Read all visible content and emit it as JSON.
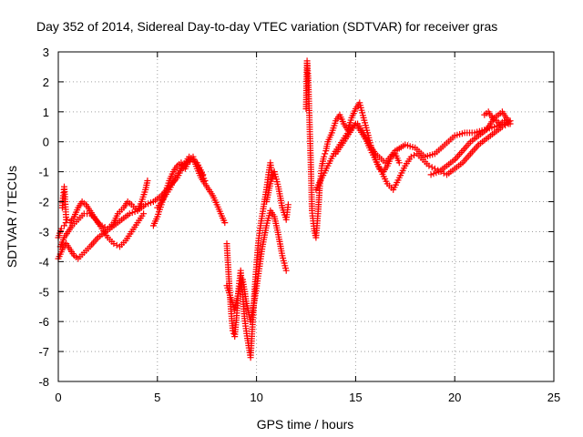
{
  "chart_data": {
    "type": "scatter",
    "title": "Day 352 of 2014, Sidereal Day-to-day VTEC variation (SDTVAR) for receiver gras",
    "xlabel": "GPS time / hours",
    "ylabel": "SDTVAR / TECUs",
    "xlim": [
      0,
      25
    ],
    "ylim": [
      -8,
      3
    ],
    "xticks": [
      0,
      5,
      10,
      15,
      20,
      25
    ],
    "yticks": [
      -8,
      -7,
      -6,
      -5,
      -4,
      -3,
      -2,
      -1,
      0,
      1,
      2,
      3
    ],
    "grid": true,
    "legend": "none",
    "marker": "plus",
    "color": "#ff0000",
    "series": [
      {
        "x": [
          0.0,
          0.15,
          0.3,
          0.45,
          0.6,
          0.8,
          1.0,
          1.2,
          1.4,
          1.6,
          1.8,
          2.0,
          2.2,
          2.5,
          2.8,
          3.0,
          3.3,
          3.5,
          3.7,
          4.0,
          4.2,
          4.4,
          4.5
        ],
        "y": [
          -3.2,
          -2.9,
          -2.8,
          -2.6,
          -2.7,
          -2.5,
          -2.2,
          -2.0,
          -2.1,
          -2.3,
          -2.5,
          -2.7,
          -2.8,
          -2.9,
          -2.7,
          -2.4,
          -2.2,
          -2.0,
          -2.1,
          -2.3,
          -2.0,
          -1.6,
          -1.3
        ]
      },
      {
        "x": [
          0.1,
          0.3,
          0.5,
          0.7,
          1.0,
          1.3,
          1.6,
          1.9,
          2.2,
          2.5,
          2.8,
          3.1,
          3.4,
          3.7,
          4.0,
          4.3
        ],
        "y": [
          -3.5,
          -3.2,
          -3.0,
          -2.8,
          -2.6,
          -2.4,
          -2.4,
          -2.6,
          -2.9,
          -3.2,
          -3.4,
          -3.5,
          -3.3,
          -3.0,
          -2.7,
          -2.4
        ]
      },
      {
        "x": [
          0.0,
          0.2,
          0.4,
          0.6,
          0.8,
          1.0,
          1.3,
          1.6,
          2.0,
          2.4,
          2.8,
          3.2,
          3.6,
          4.0,
          4.4,
          4.8,
          5.2,
          5.6,
          6.0,
          6.3,
          6.6,
          7.0,
          7.3
        ],
        "y": [
          -3.9,
          -3.6,
          -3.4,
          -3.6,
          -3.8,
          -3.9,
          -3.7,
          -3.5,
          -3.2,
          -3.0,
          -2.8,
          -2.6,
          -2.4,
          -2.3,
          -2.1,
          -2.0,
          -1.8,
          -1.5,
          -1.2,
          -0.8,
          -0.5,
          -0.7,
          -1.1
        ]
      },
      {
        "x": [
          0.2,
          0.25,
          0.3,
          0.35,
          0.4
        ],
        "y": [
          -2.2,
          -1.8,
          -1.5,
          -2.0,
          -2.6
        ]
      },
      {
        "x": [
          4.8,
          5.0,
          5.2,
          5.4,
          5.6,
          5.8,
          6.0,
          6.2,
          6.4,
          6.6,
          6.8,
          7.0,
          7.2,
          7.4,
          7.6,
          7.8,
          8.0,
          8.2,
          8.4
        ],
        "y": [
          -2.8,
          -2.5,
          -2.1,
          -1.7,
          -1.3,
          -1.0,
          -0.8,
          -0.7,
          -0.9,
          -0.6,
          -0.5,
          -0.9,
          -1.2,
          -1.4,
          -1.6,
          -1.8,
          -2.1,
          -2.4,
          -2.7
        ]
      },
      {
        "x": [
          5.0,
          5.3,
          5.6,
          5.9,
          6.2,
          6.5,
          6.8,
          7.1,
          7.4
        ],
        "y": [
          -2.2,
          -1.9,
          -1.6,
          -1.2,
          -0.9,
          -0.7,
          -0.6,
          -0.9,
          -1.3
        ]
      },
      {
        "x": [
          8.5,
          8.6,
          8.7,
          8.8,
          8.9,
          9.0,
          9.1,
          9.2,
          9.3,
          9.4,
          9.5,
          9.6,
          9.7,
          9.8,
          9.9,
          10.0,
          10.1,
          10.2,
          10.3,
          10.4,
          10.5,
          10.6,
          10.7,
          10.8
        ],
        "y": [
          -3.4,
          -4.5,
          -5.5,
          -6.3,
          -6.5,
          -5.8,
          -4.9,
          -4.3,
          -5.1,
          -5.9,
          -6.4,
          -6.8,
          -7.2,
          -6.1,
          -5.0,
          -4.1,
          -3.3,
          -2.8,
          -2.4,
          -2.0,
          -1.6,
          -1.1,
          -0.7,
          -1.2
        ]
      },
      {
        "x": [
          8.5,
          8.7,
          8.9,
          9.1,
          9.3,
          9.5,
          9.7,
          9.9,
          10.1,
          10.3,
          10.5,
          10.7,
          10.9,
          11.1,
          11.3,
          11.5
        ],
        "y": [
          -4.8,
          -5.2,
          -5.6,
          -5.0,
          -4.6,
          -5.4,
          -6.0,
          -5.3,
          -4.4,
          -3.5,
          -2.8,
          -2.3,
          -2.5,
          -3.1,
          -3.8,
          -4.3
        ]
      },
      {
        "x": [
          10.5,
          10.7,
          10.9,
          11.1,
          11.3,
          11.5,
          11.6
        ],
        "y": [
          -2.0,
          -1.4,
          -1.0,
          -1.5,
          -2.2,
          -2.6,
          -2.1
        ]
      },
      {
        "x": [
          12.5,
          12.55,
          12.6,
          12.65,
          12.7,
          12.75,
          12.8,
          12.9,
          13.0,
          13.1,
          13.2,
          13.3,
          13.4,
          13.5,
          13.6,
          13.8,
          14.0,
          14.2,
          14.4,
          14.6,
          14.8,
          15.0,
          15.2,
          15.4,
          15.6,
          15.8,
          16.0,
          16.2,
          16.4,
          16.6,
          16.8,
          17.0,
          17.2
        ],
        "y": [
          1.1,
          2.7,
          2.2,
          1.2,
          0.1,
          -1.0,
          -2.3,
          -2.9,
          -3.2,
          -2.4,
          -1.4,
          -0.8,
          -0.5,
          -0.3,
          0.0,
          0.3,
          0.7,
          0.9,
          0.6,
          0.4,
          0.8,
          1.1,
          1.3,
          0.8,
          0.3,
          -0.2,
          -0.6,
          -0.9,
          -1.0,
          -0.8,
          -0.5,
          -0.4,
          -0.7
        ]
      },
      {
        "x": [
          13.0,
          13.3,
          13.6,
          13.9,
          14.2,
          14.5,
          14.8,
          15.1,
          15.4,
          15.7,
          16.0,
          16.3,
          16.6,
          16.9,
          17.2,
          17.5,
          17.8,
          18.1,
          18.4,
          18.7,
          19.0,
          19.3,
          19.6,
          20.0,
          20.4,
          20.8,
          21.2,
          21.6,
          22.0,
          22.4,
          22.7
        ],
        "y": [
          -1.6,
          -1.2,
          -0.8,
          -0.4,
          -0.1,
          0.2,
          0.5,
          0.6,
          0.3,
          -0.2,
          -0.6,
          -1.0,
          -1.4,
          -1.6,
          -1.2,
          -0.8,
          -0.5,
          -0.4,
          -0.6,
          -0.8,
          -0.9,
          -1.0,
          -1.1,
          -0.9,
          -0.7,
          -0.4,
          -0.1,
          0.1,
          0.3,
          0.5,
          0.6
        ]
      },
      {
        "x": [
          14.0,
          14.5,
          15.0,
          15.5,
          16.0,
          16.5,
          17.0,
          17.5,
          18.0,
          18.5,
          19.0,
          19.5,
          20.0,
          20.5,
          21.0,
          21.5,
          22.0,
          22.5,
          22.8
        ],
        "y": [
          -0.4,
          0.1,
          0.6,
          0.1,
          -0.4,
          -0.7,
          -0.3,
          -0.1,
          -0.2,
          -0.5,
          -0.4,
          -0.1,
          0.2,
          0.3,
          0.3,
          0.4,
          0.5,
          0.6,
          0.7
        ]
      },
      {
        "x": [
          18.8,
          19.2,
          19.6,
          20.0,
          20.4,
          20.8,
          21.2,
          21.6,
          22.0,
          22.4,
          22.8
        ],
        "y": [
          -1.1,
          -1.0,
          -0.8,
          -0.6,
          -0.3,
          0.0,
          0.2,
          0.4,
          0.8,
          1.0,
          0.6
        ]
      },
      {
        "x": [
          21.5,
          21.7,
          21.9,
          22.1,
          22.3,
          22.5,
          22.7
        ],
        "y": [
          0.9,
          1.0,
          0.8,
          0.7,
          0.6,
          0.7,
          0.6
        ]
      }
    ]
  }
}
